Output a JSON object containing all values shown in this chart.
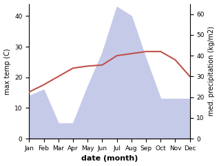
{
  "months": [
    "Jan",
    "Feb",
    "Mar",
    "Apr",
    "May",
    "Jun",
    "Jul",
    "Aug",
    "Sep",
    "Oct",
    "Nov",
    "Dec"
  ],
  "max_temp": [
    22.5,
    26,
    30,
    34,
    35,
    35.5,
    40,
    41,
    42,
    42,
    38,
    30
  ],
  "precipitation": [
    14,
    16,
    5,
    5,
    17,
    28,
    43,
    40,
    26,
    13,
    13,
    13
  ],
  "temp_color": "#c0514a",
  "precip_fill_color": "#c5cae9",
  "temp_ylim": [
    0,
    44
  ],
  "precip_ylim": [
    0,
    65
  ],
  "temp_yticks": [
    0,
    10,
    20,
    30,
    40
  ],
  "precip_yticks": [
    0,
    10,
    20,
    30,
    40,
    50,
    60
  ],
  "xlabel": "date (month)",
  "ylabel_left": "max temp (C)",
  "ylabel_right": "med. precipitation (kg/m2)",
  "fig_width": 3.18,
  "fig_height": 2.42,
  "dpi": 100
}
